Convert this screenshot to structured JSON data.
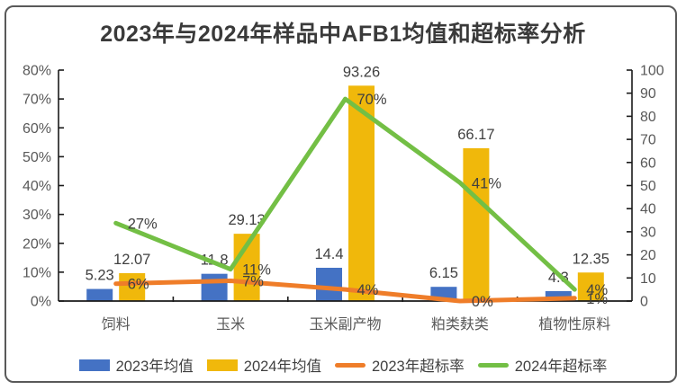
{
  "chart_data": {
    "type": "combo",
    "title": "2023年与2024年样品中AFB1均值和超标率分析",
    "categories": [
      "饲料",
      "玉米",
      "玉米副产物",
      "粕类麸类",
      "植物性原料"
    ],
    "left_axis": {
      "min": 0,
      "max": 80,
      "step": 10,
      "format": "percent",
      "ticks": [
        "0%",
        "10%",
        "20%",
        "30%",
        "40%",
        "50%",
        "60%",
        "70%",
        "80%"
      ]
    },
    "right_axis": {
      "min": 0,
      "max": 100,
      "step": 10,
      "ticks": [
        "0",
        "10",
        "20",
        "30",
        "40",
        "50",
        "60",
        "70",
        "80",
        "90",
        "100"
      ]
    },
    "grid": false,
    "legend_position": "bottom",
    "series": [
      {
        "name": "2023年均值",
        "type": "bar",
        "axis": "right",
        "color": "#4472C4",
        "values": [
          5.23,
          11.8,
          14.4,
          6.15,
          4.3
        ],
        "labels": [
          "5.23",
          "11.8",
          "14.4",
          "6.15",
          "4.3"
        ]
      },
      {
        "name": "2024年均值",
        "type": "bar",
        "axis": "right",
        "color": "#F0B80B",
        "values": [
          12.07,
          29.13,
          93.26,
          66.17,
          12.35
        ],
        "labels": [
          "12.07",
          "29.13",
          "93.26",
          "66.17",
          "12.35"
        ]
      },
      {
        "name": "2023年超标率",
        "type": "line",
        "axis": "left",
        "color": "#EF7D29",
        "values": [
          6,
          7,
          4,
          0,
          1
        ],
        "labels": [
          "6%",
          "7%",
          "4%",
          "0%",
          "1%"
        ]
      },
      {
        "name": "2024年超标率",
        "type": "line",
        "axis": "left",
        "color": "#73BF45",
        "values": [
          27,
          11,
          70,
          41,
          4
        ],
        "labels": [
          "27%",
          "11%",
          "70%",
          "41%",
          "4%"
        ]
      }
    ],
    "text_colors": {
      "title": "#3A3A3A",
      "data_label": "#404040",
      "axis_label": "#595959"
    }
  }
}
